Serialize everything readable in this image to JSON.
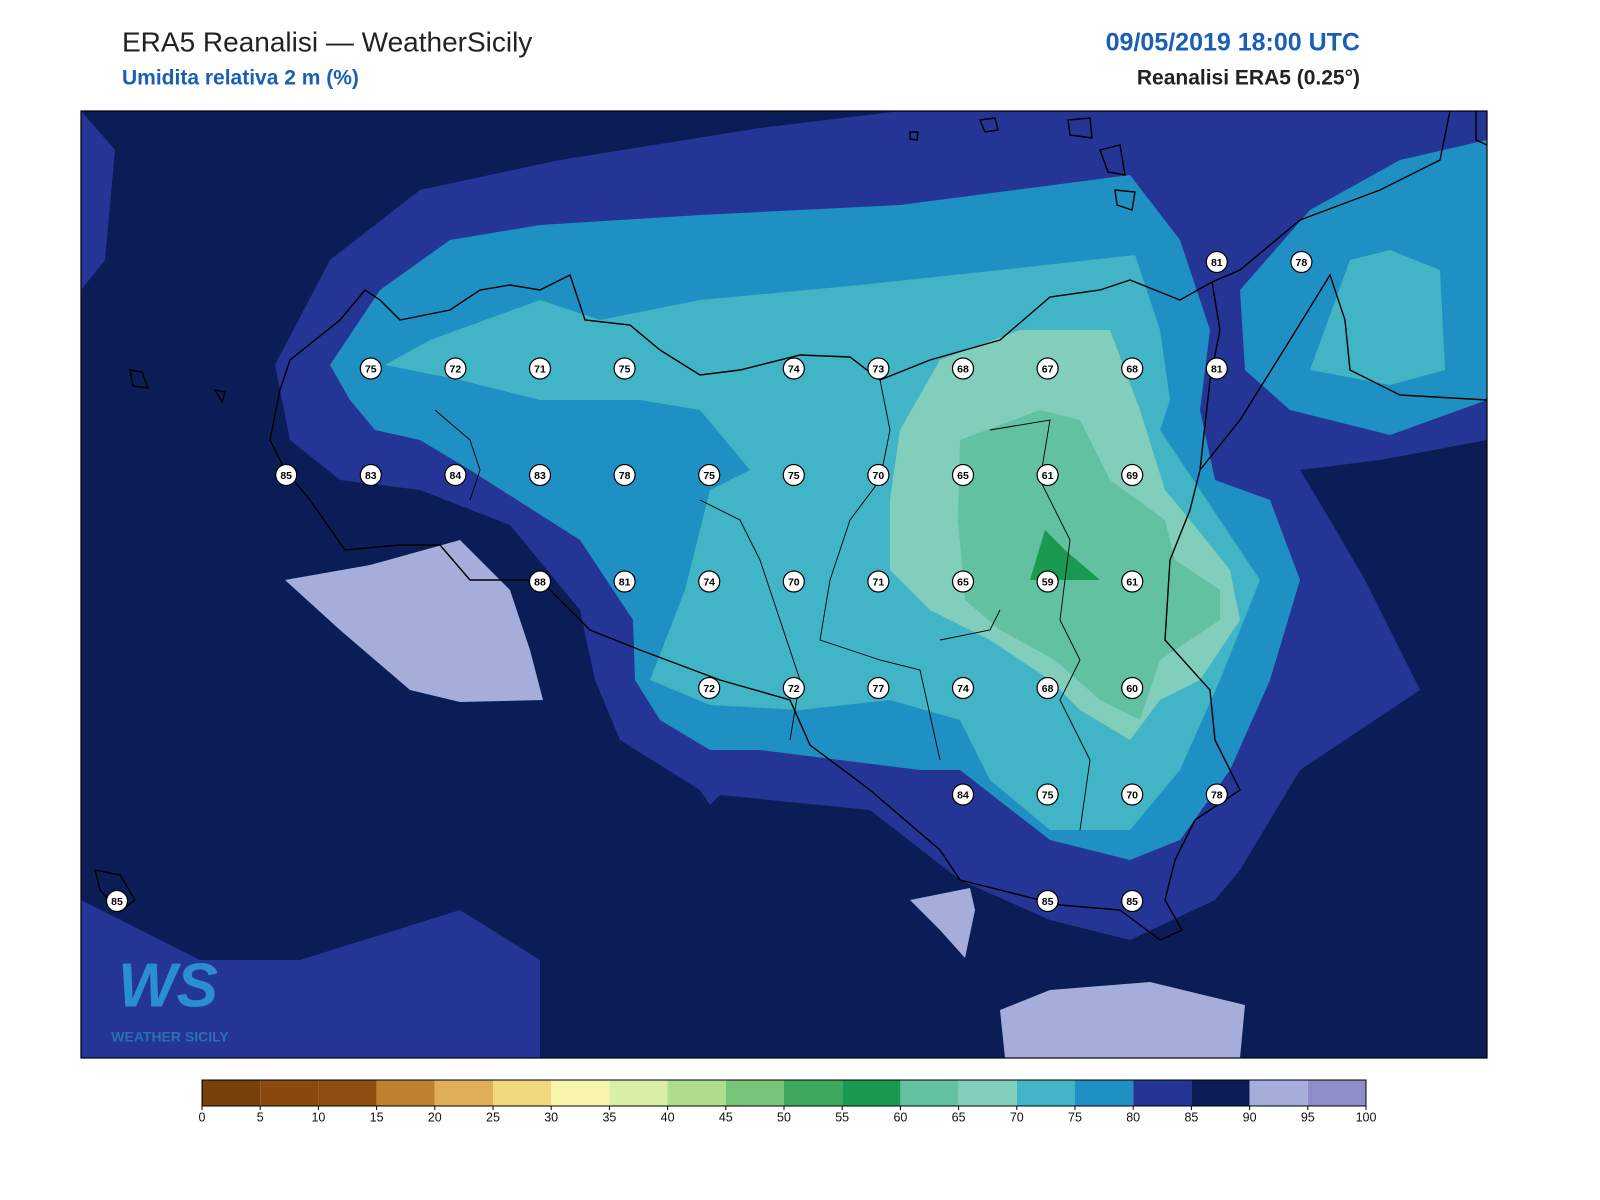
{
  "header": {
    "title": "ERA5 Reanalisi — WeatherSicily",
    "subtitle": "Umidita relativa 2 m (%)",
    "datetime": "09/05/2019 18:00 UTC",
    "source": "Reanalisi ERA5 (0.25°)"
  },
  "stations": {
    "rows": [
      [
        null,
        null,
        null,
        null,
        null,
        null,
        null,
        null,
        null,
        null,
        null,
        null,
        null,
        81,
        78
      ],
      [
        null,
        null,
        null,
        75,
        72,
        71,
        75,
        null,
        74,
        73,
        68,
        67,
        68,
        81,
        null
      ],
      [
        null,
        null,
        85,
        83,
        84,
        83,
        78,
        75,
        75,
        70,
        65,
        61,
        69,
        null,
        null
      ],
      [
        null,
        null,
        null,
        null,
        null,
        88,
        81,
        74,
        70,
        71,
        65,
        59,
        61,
        null,
        null
      ],
      [
        null,
        null,
        null,
        null,
        null,
        null,
        null,
        72,
        72,
        77,
        74,
        68,
        60,
        null,
        null
      ],
      [
        null,
        null,
        null,
        null,
        null,
        null,
        null,
        null,
        null,
        null,
        84,
        75,
        70,
        78,
        null
      ],
      [
        85,
        null,
        null,
        null,
        null,
        null,
        null,
        null,
        null,
        null,
        null,
        85,
        85,
        null,
        null
      ]
    ]
  },
  "colorbar": {
    "ticks": [
      0,
      5,
      10,
      15,
      20,
      25,
      30,
      35,
      40,
      45,
      50,
      55,
      60,
      65,
      70,
      75,
      80,
      85,
      90,
      95,
      100
    ],
    "colors": [
      "#784109",
      "#8a4a0d",
      "#8f4e11",
      "#c0812f",
      "#e0ae58",
      "#f1d77d",
      "#f8f6aa",
      "#d9eea8",
      "#aede8c",
      "#78c47a",
      "#3ea85d",
      "#199a51",
      "#61c1a1",
      "#82cebc",
      "#41b4c5",
      "#1f90c3",
      "#253595",
      "#0b1d56",
      "#a5aeda",
      "#8f8dc7"
    ]
  },
  "logo": {
    "mark": "WS",
    "text": "WEATHER SICILY"
  }
}
